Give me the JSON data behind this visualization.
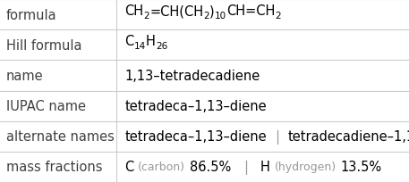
{
  "rows": [
    {
      "label": "formula",
      "type": "formula"
    },
    {
      "label": "Hill formula",
      "type": "hill"
    },
    {
      "label": "name",
      "type": "name"
    },
    {
      "label": "IUPAC name",
      "type": "iupac"
    },
    {
      "label": "alternate names",
      "type": "alternate"
    },
    {
      "label": "mass fractions",
      "type": "mass"
    }
  ],
  "col_split": 0.285,
  "bg_color": "#ffffff",
  "line_color": "#cccccc",
  "label_color": "#404040",
  "value_color": "#000000",
  "gray_color": "#999999",
  "font_size": 10.5,
  "sub_font_size": 7.5,
  "fig_width": 4.57,
  "fig_height": 2.05,
  "dpi": 100
}
